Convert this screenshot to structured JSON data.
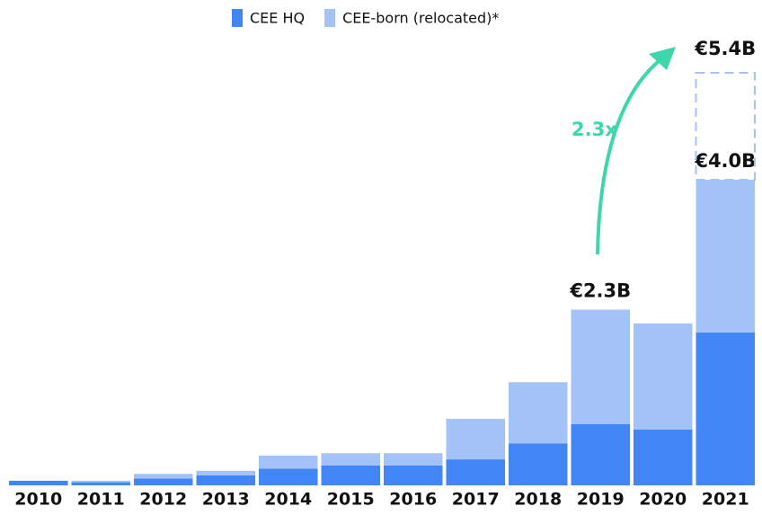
{
  "chart_data": {
    "type": "stacked-bar",
    "categories": [
      "2010",
      "2011",
      "2012",
      "2013",
      "2014",
      "2015",
      "2016",
      "2017",
      "2018",
      "2019",
      "2020",
      "2021"
    ],
    "series": [
      {
        "name": "CEE HQ",
        "color": "#4286f5",
        "values": [
          0.06,
          0.04,
          0.09,
          0.13,
          0.22,
          0.26,
          0.26,
          0.34,
          0.55,
          0.8,
          0.73,
          2.0
        ]
      },
      {
        "name": "CEE-born (relocated)*",
        "color": "#a3c2f8",
        "values": [
          0,
          0.02,
          0.06,
          0.06,
          0.17,
          0.16,
          0.16,
          0.53,
          0.8,
          1.5,
          1.39,
          2.0
        ]
      }
    ],
    "ylim": [
      0,
      6
    ],
    "total_labels": [
      {
        "index": 9,
        "value": 2.3,
        "label": "€2.3B"
      },
      {
        "index": 11,
        "value": 4.0,
        "label": "€4.0B"
      }
    ],
    "projection": {
      "index": 11,
      "value": 5.4,
      "label": "€5.4B",
      "color": "#a3c2f8"
    },
    "annotation": {
      "text": "2.3x",
      "color": "#3dd6ad"
    }
  }
}
